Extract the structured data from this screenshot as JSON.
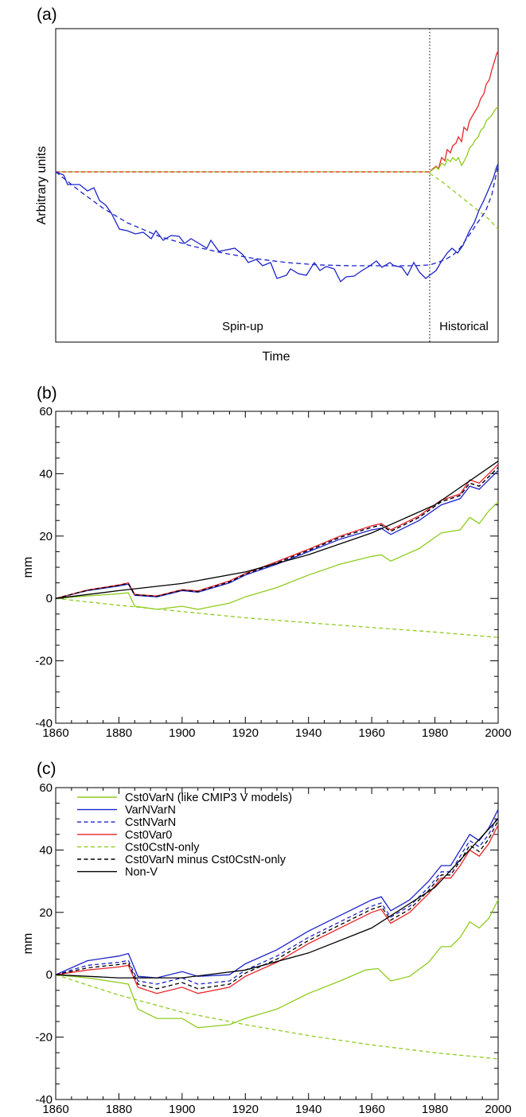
{
  "chart_data": [
    {
      "panel": "(a)",
      "type": "line",
      "xlabel": "Time",
      "ylabel": "Arbitrary units",
      "regions": [
        "Spin-up",
        "Historical"
      ],
      "divider": "dotted vertical line at start of Historical period",
      "colors": {
        "red": "#e8262a",
        "green": "#8fcc1f",
        "blue": "#1c23c9"
      }
    },
    {
      "panel": "(b)",
      "type": "line",
      "xlabel": "",
      "ylabel": "mm",
      "xlim": [
        1860,
        2000
      ],
      "ylim": [
        -40,
        60
      ],
      "x_ticks": [
        1860,
        1880,
        1900,
        1920,
        1940,
        1960,
        1980,
        2000
      ],
      "y_ticks": [
        -40,
        -20,
        0,
        20,
        40,
        60
      ],
      "series": [
        {
          "color": "#8fcc1f",
          "style": "solid",
          "x": [
            1860,
            1870,
            1880,
            1883,
            1885,
            1892,
            1900,
            1905,
            1915,
            1920,
            1930,
            1940,
            1950,
            1960,
            1963,
            1966,
            1975,
            1982,
            1988,
            1991,
            1994,
            1997,
            2000
          ],
          "y": [
            0,
            0.8,
            1.5,
            1.8,
            -2.5,
            -3.5,
            -2.5,
            -3.5,
            -1.5,
            0.5,
            3.5,
            7.5,
            11,
            13.5,
            14,
            12,
            16,
            21,
            22,
            26,
            24,
            28,
            31
          ]
        },
        {
          "color": "#1c23c9",
          "style": "solid",
          "x": [
            1860,
            1870,
            1880,
            1883,
            1885,
            1892,
            1900,
            1905,
            1915,
            1920,
            1930,
            1940,
            1950,
            1960,
            1963,
            1966,
            1975,
            1982,
            1988,
            1991,
            1994,
            1997,
            2000
          ],
          "y": [
            0,
            2.5,
            4,
            4.6,
            1,
            0.5,
            2.5,
            2,
            5,
            7.5,
            11,
            15,
            19,
            22,
            22.5,
            20.5,
            25,
            30,
            32,
            36,
            35,
            38,
            41
          ]
        },
        {
          "color": "#1c23c9",
          "style": "dashed",
          "x": [
            1860,
            1870,
            1880,
            1883,
            1885,
            1892,
            1900,
            1905,
            1915,
            1920,
            1930,
            1940,
            1950,
            1960,
            1963,
            1966,
            1975,
            1982,
            1988,
            1991,
            1994,
            1997,
            2000
          ],
          "y": [
            0,
            2.6,
            4.2,
            4.8,
            1.2,
            0.7,
            2.7,
            2.2,
            5.3,
            7.8,
            11.4,
            15.4,
            19.6,
            22.8,
            23.5,
            21.5,
            26,
            31,
            33,
            37,
            36,
            39,
            42
          ]
        },
        {
          "color": "#e8262a",
          "style": "solid",
          "x": [
            1860,
            1870,
            1880,
            1883,
            1885,
            1892,
            1900,
            1905,
            1915,
            1920,
            1930,
            1940,
            1950,
            1960,
            1963,
            1966,
            1975,
            1982,
            1988,
            1991,
            1994,
            1997,
            2000
          ],
          "y": [
            0,
            2.7,
            4.3,
            5,
            1.3,
            0.8,
            2.8,
            2.4,
            5.6,
            8,
            11.8,
            15.8,
            20,
            23.3,
            24,
            22,
            26.5,
            31.5,
            33.5,
            38,
            37,
            40,
            43
          ]
        },
        {
          "color": "#8fcc1f",
          "style": "dashed",
          "x": [
            1860,
            1880,
            1900,
            1920,
            1940,
            1960,
            1980,
            2000
          ],
          "y": [
            0,
            -2.2,
            -4.2,
            -6.2,
            -7.8,
            -9.3,
            -10.8,
            -12.5
          ]
        },
        {
          "color": "#000000",
          "style": "dashed",
          "x": [
            1860,
            1870,
            1880,
            1883,
            1885,
            1892,
            1900,
            1905,
            1915,
            1920,
            1930,
            1940,
            1950,
            1960,
            1963,
            1966,
            1975,
            1982,
            1988,
            1991,
            1994,
            1997,
            2000
          ],
          "y": [
            0,
            2.6,
            4.2,
            4.8,
            1.2,
            0.7,
            2.7,
            2.2,
            5.3,
            7.8,
            11.4,
            15.4,
            19.6,
            22.8,
            23.5,
            21.5,
            26,
            31,
            33,
            37,
            36,
            39,
            42
          ]
        },
        {
          "color": "#000000",
          "style": "solid",
          "x": [
            1860,
            1880,
            1900,
            1920,
            1940,
            1960,
            1980,
            2000
          ],
          "y": [
            0,
            2.5,
            4.8,
            8.5,
            14,
            21,
            30,
            44
          ]
        }
      ]
    },
    {
      "panel": "(c)",
      "type": "line",
      "xlabel": "",
      "ylabel": "mm",
      "xlim": [
        1860,
        2000
      ],
      "ylim": [
        -40,
        60
      ],
      "x_ticks": [
        1860,
        1880,
        1900,
        1920,
        1940,
        1960,
        1980,
        2000
      ],
      "y_ticks": [
        -40,
        -20,
        0,
        20,
        40,
        60
      ],
      "legend_position": "top-left",
      "series": [
        {
          "name": "Cst0VarN (like CMIP3 V models)",
          "color": "#8fcc1f",
          "style": "solid",
          "x": [
            1860,
            1870,
            1880,
            1883,
            1886,
            1892,
            1900,
            1905,
            1915,
            1920,
            1930,
            1940,
            1950,
            1958,
            1962,
            1966,
            1972,
            1978,
            1982,
            1985,
            1988,
            1991,
            1994,
            1997,
            2000
          ],
          "y": [
            0,
            -1,
            -2.5,
            -3,
            -11,
            -14,
            -14,
            -17,
            -16,
            -14,
            -11,
            -6,
            -2,
            1.5,
            2,
            -2,
            -0.5,
            4,
            9,
            9,
            12,
            17,
            15,
            18,
            24
          ]
        },
        {
          "name": "VarNVarN",
          "color": "#1c23c9",
          "style": "solid",
          "x": [
            1860,
            1870,
            1880,
            1883,
            1886,
            1892,
            1900,
            1905,
            1915,
            1920,
            1930,
            1940,
            1950,
            1960,
            1963,
            1966,
            1972,
            1978,
            1982,
            1985,
            1988,
            1991,
            1994,
            1997,
            2000
          ],
          "y": [
            0,
            4.5,
            6,
            6.8,
            -0.5,
            -1,
            1,
            -0.5,
            0,
            3.5,
            8,
            14,
            19,
            24,
            25,
            20.5,
            24,
            30,
            35,
            35,
            40,
            45,
            43,
            47,
            53
          ]
        },
        {
          "name": "CstNVarN",
          "color": "#1c23c9",
          "style": "dashed",
          "x": [
            1860,
            1870,
            1880,
            1883,
            1886,
            1892,
            1900,
            1905,
            1915,
            1920,
            1930,
            1940,
            1950,
            1960,
            1963,
            1966,
            1972,
            1978,
            1982,
            1985,
            1988,
            1991,
            1994,
            1997,
            2000
          ],
          "y": [
            0,
            3,
            4,
            4.6,
            -2,
            -3,
            -1,
            -3,
            -2,
            1.5,
            6,
            12,
            17,
            22,
            23,
            18.5,
            22,
            28,
            33,
            33,
            38,
            43,
            41,
            45,
            51
          ]
        },
        {
          "name": "Cst0Var0",
          "color": "#e8262a",
          "style": "solid",
          "x": [
            1860,
            1870,
            1880,
            1883,
            1886,
            1892,
            1900,
            1905,
            1915,
            1920,
            1930,
            1940,
            1950,
            1960,
            1963,
            1966,
            1972,
            1978,
            1982,
            1985,
            1988,
            1991,
            1994,
            1997,
            2000
          ],
          "y": [
            0,
            1.5,
            2.5,
            3,
            -4,
            -6,
            -4,
            -6,
            -4,
            -0.5,
            4,
            10,
            15,
            20,
            21,
            16.5,
            20,
            26,
            31,
            31,
            35,
            40,
            38,
            42,
            48
          ]
        },
        {
          "name": "Cst0CstN-only",
          "color": "#8fcc1f",
          "style": "dashed",
          "x": [
            1860,
            1880,
            1900,
            1920,
            1940,
            1960,
            1980,
            2000
          ],
          "y": [
            0,
            -6.5,
            -12,
            -16,
            -19.5,
            -22.5,
            -25,
            -27
          ]
        },
        {
          "name": "Cst0VarN minus Cst0CstN-only",
          "color": "#000000",
          "style": "dashed",
          "x": [
            1860,
            1870,
            1880,
            1883,
            1886,
            1892,
            1900,
            1905,
            1915,
            1920,
            1930,
            1940,
            1950,
            1960,
            1963,
            1966,
            1972,
            1978,
            1982,
            1985,
            1988,
            1991,
            1994,
            1997,
            2000
          ],
          "y": [
            0,
            2.2,
            3.3,
            3.8,
            -3,
            -4.5,
            -2.5,
            -4.5,
            -3,
            0.5,
            5,
            11,
            16,
            21,
            22,
            17.5,
            21,
            27,
            32,
            32,
            36.5,
            41.5,
            39.5,
            43.5,
            49.5
          ]
        },
        {
          "name": "Non-V",
          "color": "#000000",
          "style": "solid",
          "x": [
            1860,
            1880,
            1900,
            1920,
            1940,
            1960,
            1980,
            2000
          ],
          "y": [
            0,
            -1,
            -1,
            1.5,
            7,
            15,
            28,
            50
          ]
        }
      ]
    }
  ]
}
